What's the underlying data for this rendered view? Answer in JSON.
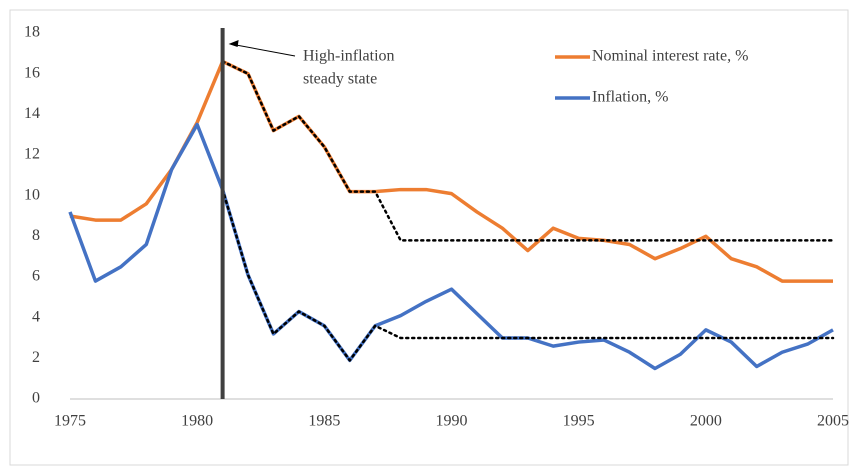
{
  "chart_data": {
    "type": "line",
    "x": [
      1975,
      1976,
      1977,
      1978,
      1979,
      1980,
      1981,
      1982,
      1983,
      1984,
      1985,
      1986,
      1987,
      1988,
      1989,
      1990,
      1991,
      1992,
      1993,
      1994,
      1995,
      1996,
      1997,
      1998,
      1999,
      2000,
      2001,
      2002,
      2003,
      2004,
      2005
    ],
    "series": [
      {
        "name": "Nominal interest rate, %",
        "color": "#ED7D31",
        "style": "solid",
        "values": [
          9.0,
          8.8,
          8.8,
          9.6,
          11.3,
          13.6,
          16.6,
          16.0,
          13.2,
          13.9,
          12.4,
          10.2,
          10.2,
          10.3,
          10.3,
          10.1,
          9.2,
          8.4,
          7.3,
          8.4,
          7.9,
          7.8,
          7.6,
          6.9,
          7.4,
          8.0,
          6.9,
          6.5,
          5.8,
          5.8,
          5.8
        ]
      },
      {
        "name": "Inflation, %",
        "color": "#4472C4",
        "style": "solid",
        "values": [
          9.2,
          5.8,
          6.5,
          7.6,
          11.3,
          13.5,
          10.3,
          6.1,
          3.2,
          4.3,
          3.6,
          1.9,
          3.6,
          4.1,
          4.8,
          5.4,
          4.2,
          3.0,
          3.0,
          2.6,
          2.8,
          2.9,
          2.3,
          1.5,
          2.2,
          3.4,
          2.8,
          1.6,
          2.3,
          2.7,
          3.4
        ]
      },
      {
        "color": "#000000",
        "style": "dotted",
        "values": [
          null,
          null,
          null,
          null,
          null,
          null,
          16.6,
          16.0,
          13.2,
          13.9,
          12.4,
          10.2,
          10.2,
          7.8,
          7.8,
          7.8,
          7.8,
          7.8,
          7.8,
          7.8,
          7.8,
          7.8,
          7.8,
          7.8,
          7.8,
          7.8,
          7.8,
          7.8,
          7.8,
          7.8,
          7.8
        ]
      },
      {
        "color": "#000000",
        "style": "dotted",
        "values": [
          null,
          null,
          null,
          null,
          null,
          null,
          10.3,
          6.1,
          3.2,
          4.3,
          3.6,
          1.9,
          3.6,
          3.0,
          3.0,
          3.0,
          3.0,
          3.0,
          3.0,
          3.0,
          3.0,
          3.0,
          3.0,
          3.0,
          3.0,
          3.0,
          3.0,
          3.0,
          3.0,
          3.0,
          3.0
        ]
      }
    ],
    "vline": 1981,
    "vline_color": "#404040",
    "annotation": [
      "High-inflation",
      "steady state"
    ],
    "xlim": [
      1975,
      2005
    ],
    "xticks": [
      1975,
      1980,
      1985,
      1990,
      1995,
      2000,
      2005
    ],
    "ylim": [
      0,
      18
    ],
    "yticks": [
      0,
      2,
      4,
      6,
      8,
      10,
      12,
      14,
      16,
      18
    ],
    "grid": false,
    "legend": "top-right"
  }
}
